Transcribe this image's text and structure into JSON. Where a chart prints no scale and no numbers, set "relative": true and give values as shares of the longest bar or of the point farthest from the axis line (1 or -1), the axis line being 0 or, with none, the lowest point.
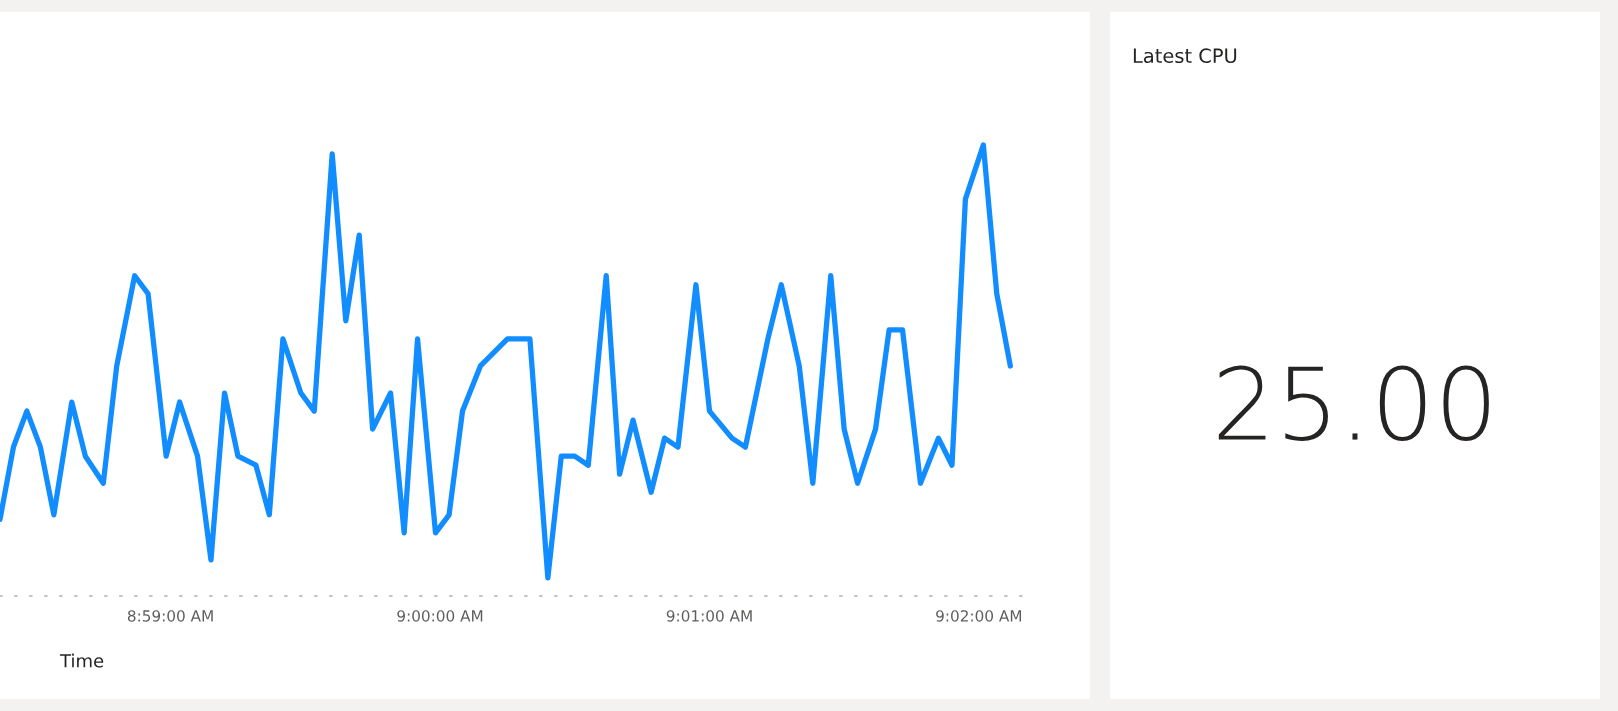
{
  "chart_data": [
    {
      "type": "line",
      "xlabel": "Time",
      "relative": true,
      "line_style": "solid",
      "marker": "none",
      "xlim": [
        8.97278,
        9.03631
      ],
      "xticks": [
        {
          "value": 8.98333,
          "label": "8:59:00 AM"
        },
        {
          "value": 9,
          "label": "9:00:00 AM"
        },
        {
          "value": 9.01667,
          "label": "9:01:00 AM"
        },
        {
          "value": 9.03333,
          "label": "9:02:00 AM"
        }
      ],
      "series": [
        {
          "color": "#118dff",
          "x": [
            8.97278,
            8.97361,
            8.97444,
            8.97528,
            8.97611,
            8.97722,
            8.97806,
            8.97917,
            8.98,
            8.98111,
            8.98194,
            8.98306,
            8.98389,
            8.985,
            8.98583,
            8.98667,
            8.9875,
            8.98861,
            8.98944,
            8.99028,
            8.99139,
            8.99222,
            8.99333,
            8.99417,
            8.995,
            8.99583,
            8.99694,
            8.99778,
            8.99861,
            8.99972,
            9.00056,
            9.00139,
            9.0025,
            9.00417,
            9.00556,
            9.00667,
            9.0075,
            9.00833,
            9.00917,
            9.01028,
            9.01111,
            9.01194,
            9.01306,
            9.01389,
            9.01472,
            9.01583,
            9.01667,
            9.01806,
            9.01889,
            9.02028,
            9.02111,
            9.02222,
            9.02306,
            9.02417,
            9.025,
            9.02583,
            9.02694,
            9.02778,
            9.02861,
            9.02972,
            9.03083,
            9.03167,
            9.0325,
            9.03361,
            9.03444,
            9.03528
          ],
          "values": [
            0.17,
            0.33,
            0.41,
            0.33,
            0.18,
            0.43,
            0.31,
            0.25,
            0.51,
            0.71,
            0.67,
            0.31,
            0.43,
            0.31,
            0.08,
            0.45,
            0.31,
            0.29,
            0.18,
            0.57,
            0.45,
            0.41,
            0.98,
            0.61,
            0.8,
            0.37,
            0.45,
            0.14,
            0.57,
            0.14,
            0.18,
            0.41,
            0.51,
            0.57,
            0.57,
            0.04,
            0.31,
            0.31,
            0.29,
            0.71,
            0.27,
            0.39,
            0.23,
            0.35,
            0.33,
            0.69,
            0.41,
            0.35,
            0.33,
            0.57,
            0.69,
            0.51,
            0.25,
            0.71,
            0.37,
            0.25,
            0.37,
            0.59,
            0.59,
            0.25,
            0.35,
            0.29,
            0.88,
            1.0,
            0.67,
            0.51
          ]
        }
      ]
    },
    {
      "type": "other",
      "title": "Latest CPU",
      "annotations": [
        "25.00"
      ]
    }
  ]
}
